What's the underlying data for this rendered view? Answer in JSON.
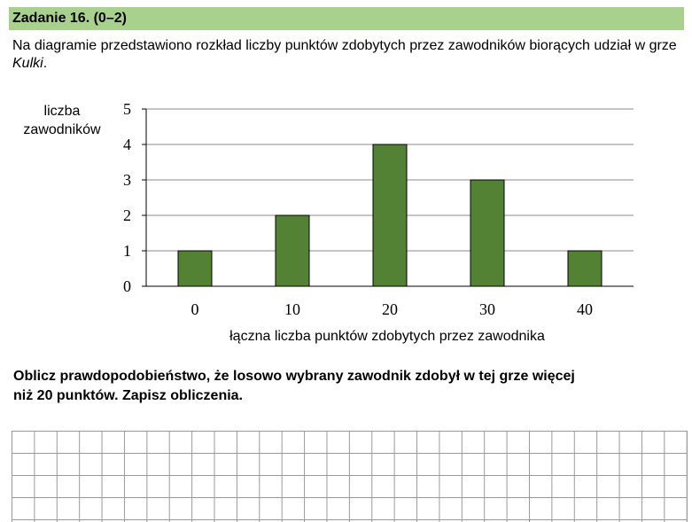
{
  "header": {
    "title": "Zadanie 16. (0–2)"
  },
  "intro": {
    "text_before": "Na diagramie przedstawiono rozkład liczby punktów zdobytych przez zawodników biorących udział w grze ",
    "game_name": "Kulki",
    "text_after": "."
  },
  "chart_data": {
    "type": "bar",
    "categories": [
      "0",
      "10",
      "20",
      "30",
      "40"
    ],
    "values": [
      1,
      2,
      4,
      3,
      1
    ],
    "ylabel_line1": "liczba",
    "ylabel_line2": "zawodników",
    "xlabel": "łączna liczba punktów zdobytych przez zawodnika",
    "ylim": [
      0,
      5
    ],
    "yticks": [
      "0",
      "1",
      "2",
      "3",
      "4",
      "5"
    ],
    "grid": true,
    "bar_color": "#548235"
  },
  "task": {
    "line1": "Oblicz prawdopodobieństwo, że losowo wybrany zawodnik zdobył w tej grze więcej",
    "line2": "niż  20 punktów. Zapisz obliczenia."
  }
}
